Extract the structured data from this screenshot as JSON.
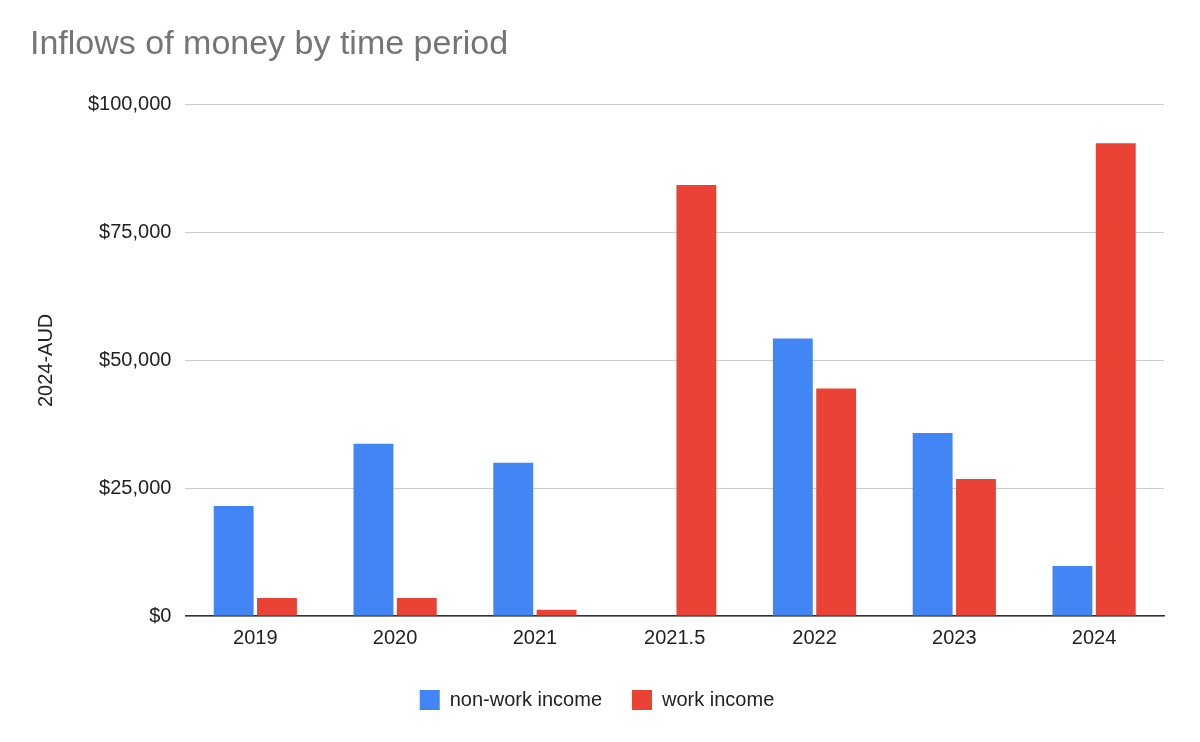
{
  "chart_data": {
    "type": "bar",
    "title": "Inflows of money by time period",
    "y_label": "2024-AUD",
    "categories": [
      "2019",
      "2020",
      "2021",
      "2021.5",
      "2022",
      "2023",
      "2024"
    ],
    "series": [
      {
        "name": "non-work income",
        "color": "#4285f4",
        "values": [
          21500,
          33700,
          30000,
          0,
          54300,
          35800,
          9800
        ]
      },
      {
        "name": "work income",
        "color": "#ea4335",
        "values": [
          3500,
          3500,
          1200,
          84300,
          44500,
          26800,
          92500
        ]
      }
    ],
    "ylim": [
      0,
      100000
    ],
    "yticks": [
      {
        "value": 0,
        "label": "$0"
      },
      {
        "value": 25000,
        "label": "$25,000"
      },
      {
        "value": 50000,
        "label": "$50,000"
      },
      {
        "value": 75000,
        "label": "$75,000"
      },
      {
        "value": 100000,
        "label": "$100,000"
      }
    ],
    "grid": true,
    "legend": "bottom"
  }
}
